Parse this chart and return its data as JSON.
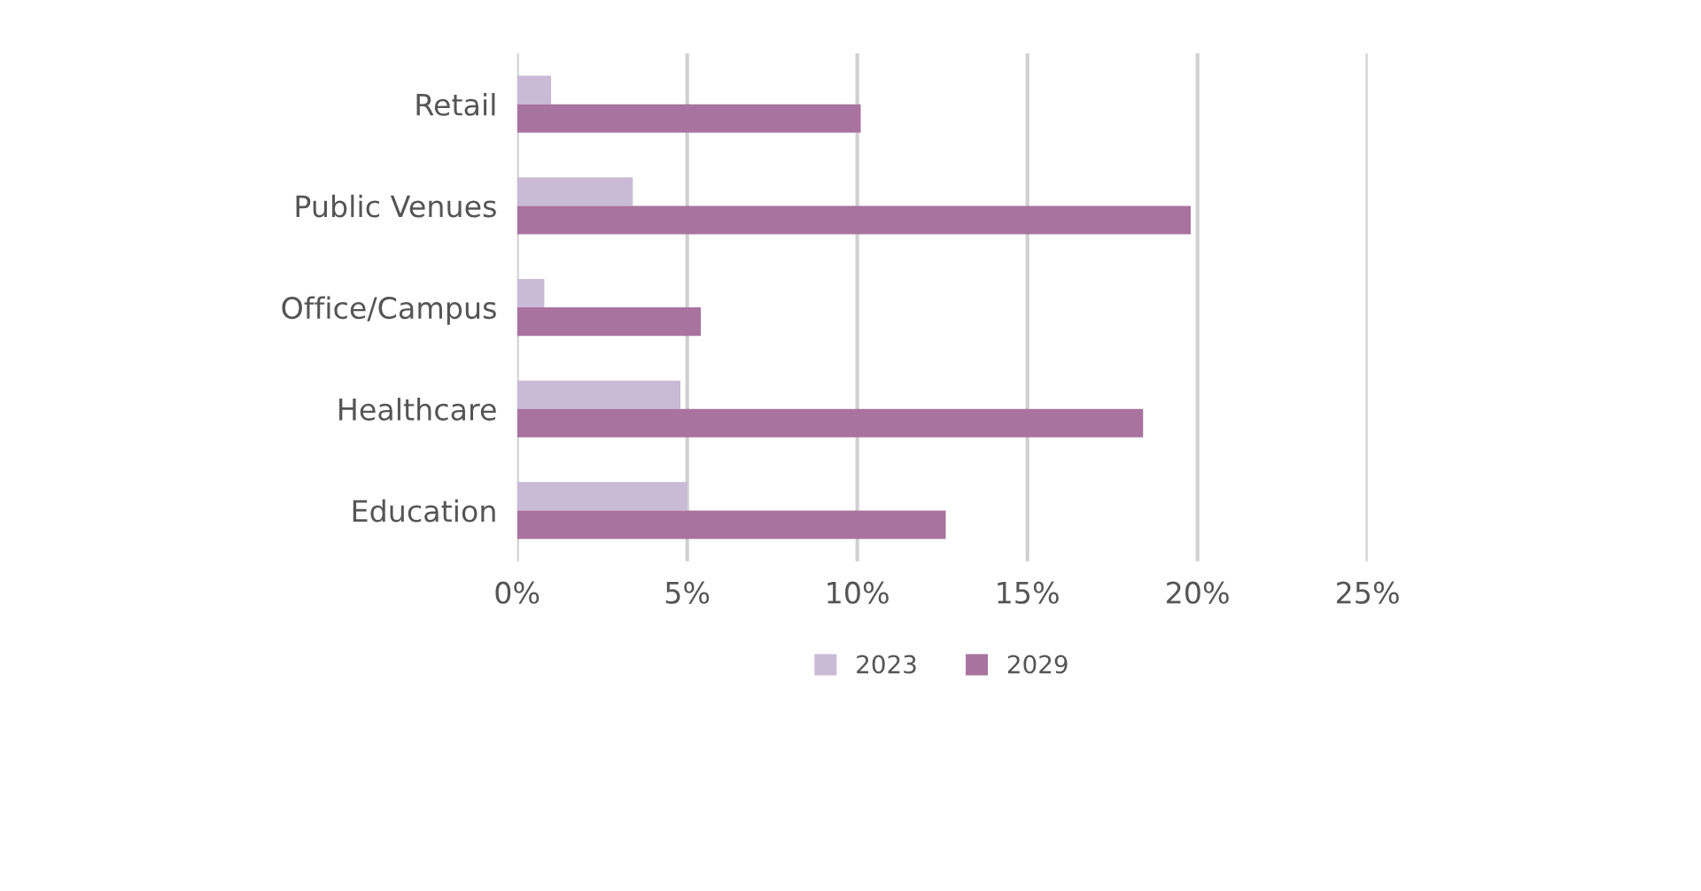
{
  "chart_data": {
    "type": "bar",
    "orientation": "horizontal",
    "categories": [
      "Retail",
      "Public Venues",
      "Office/Campus",
      "Healthcare",
      "Education"
    ],
    "series": [
      {
        "name": "2023",
        "color": "#c9bad6",
        "values": [
          1.0,
          3.4,
          0.8,
          4.8,
          5.0
        ]
      },
      {
        "name": "2029",
        "color": "#a8739e",
        "values": [
          10.1,
          19.8,
          5.4,
          18.4,
          12.6
        ]
      }
    ],
    "xlim": [
      0,
      25
    ],
    "xticks": [
      {
        "value": 0,
        "label": "0%"
      },
      {
        "value": 5,
        "label": "5%"
      },
      {
        "value": 10,
        "label": "10%"
      },
      {
        "value": 15,
        "label": "15%"
      },
      {
        "value": 20,
        "label": "20%"
      },
      {
        "value": 25,
        "label": "25%"
      }
    ],
    "grid": "x",
    "legend": "bottom"
  }
}
